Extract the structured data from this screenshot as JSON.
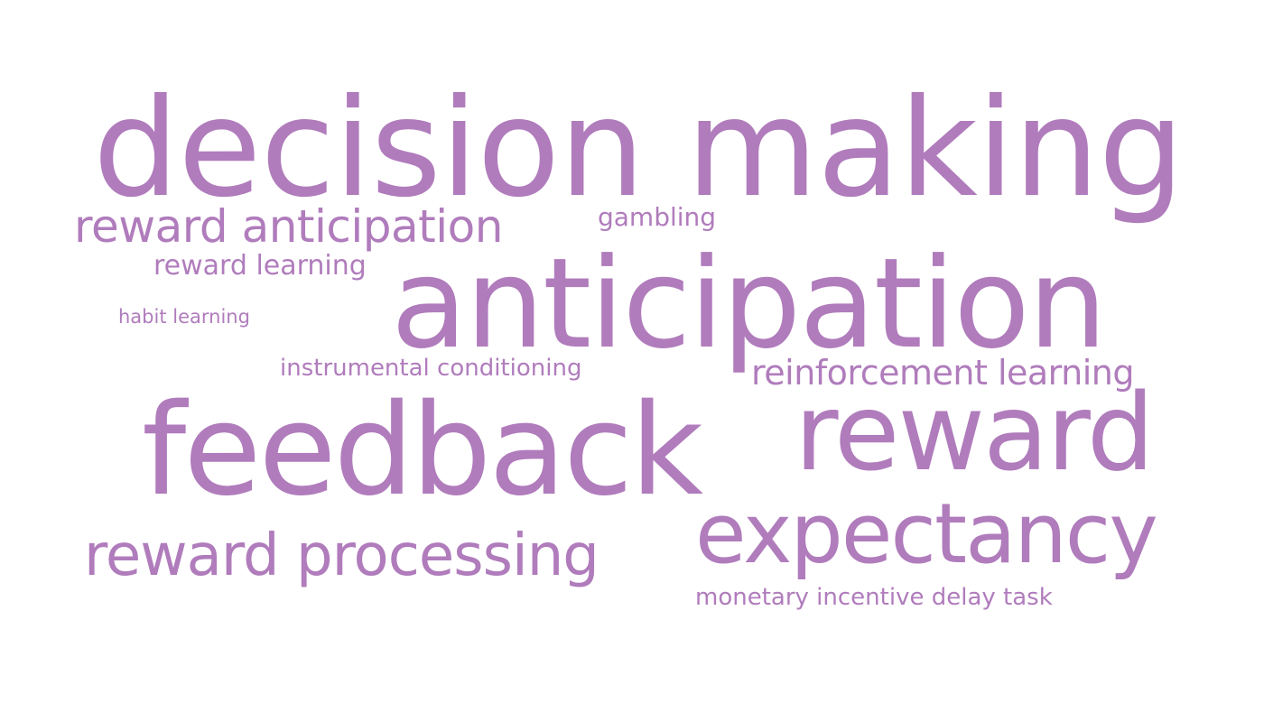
{
  "cloud": {
    "color": "#b07cbc",
    "words": [
      "decision making",
      "anticipation",
      "feedback",
      "reward",
      "expectancy",
      "reward processing",
      "reward anticipation",
      "reinforcement learning",
      "reward learning",
      "gambling",
      "instrumental conditioning",
      "monetary incentive delay task",
      "habit learning"
    ]
  }
}
